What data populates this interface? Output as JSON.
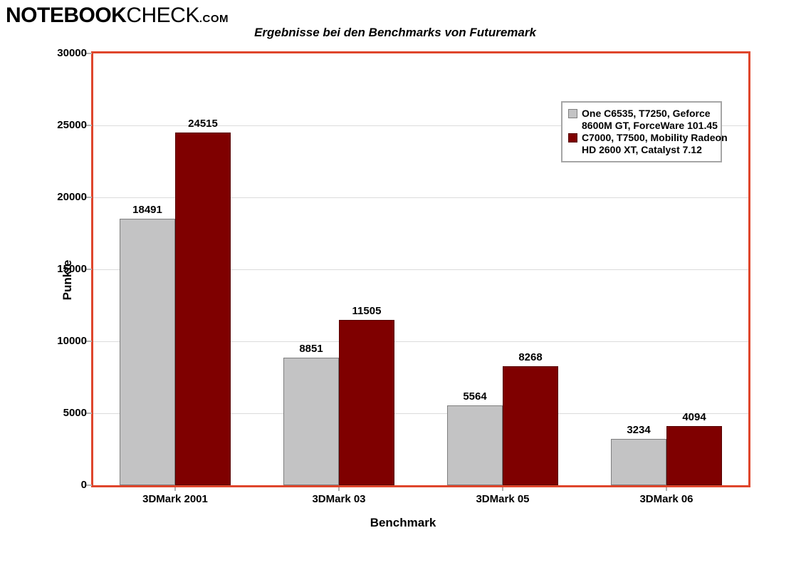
{
  "logo": {
    "part1": "NOTEBOOK",
    "part2": "CHECK",
    "part3": ".COM"
  },
  "title": "Ergebnisse bei den Benchmarks von Futuremark",
  "chart_data": {
    "type": "bar",
    "title": "Ergebnisse bei den Benchmarks von Futuremark",
    "categories": [
      "3DMark 2001",
      "3DMark 03",
      "3DMark 05",
      "3DMark 06"
    ],
    "series": [
      {
        "name": "One C6535, T7250, Geforce 8600M GT, ForceWare 101.45",
        "legend_lines": [
          "One C6535, T7250, Geforce",
          "8600M GT, ForceWare 101.45"
        ],
        "color": "#c3c3c4",
        "border_color": "#7f7f7f",
        "values": [
          18491,
          8851,
          5564,
          3234
        ]
      },
      {
        "name": "C7000, T7500, Mobility Radeon HD 2600 XT, Catalyst 7.12",
        "legend_lines": [
          "C7000, T7500, Mobility Radeon",
          "HD 2600 XT, Catalyst 7.12"
        ],
        "color": "#7f0000",
        "border_color": "#550000",
        "values": [
          24515,
          11505,
          8268,
          4094
        ]
      }
    ],
    "xlabel": "Benchmark",
    "ylabel": "Punkte",
    "ylim": [
      0,
      30000
    ],
    "yticks": [
      0,
      5000,
      10000,
      15000,
      20000,
      25000,
      30000
    ],
    "grid": true,
    "legend_position": "top-right"
  },
  "colors": {
    "plot_border": "#df462c",
    "gridline": "#dcdcdc",
    "tick": "#b0b0b0",
    "legend_border": "#a6a6a6",
    "text": "#000000"
  }
}
